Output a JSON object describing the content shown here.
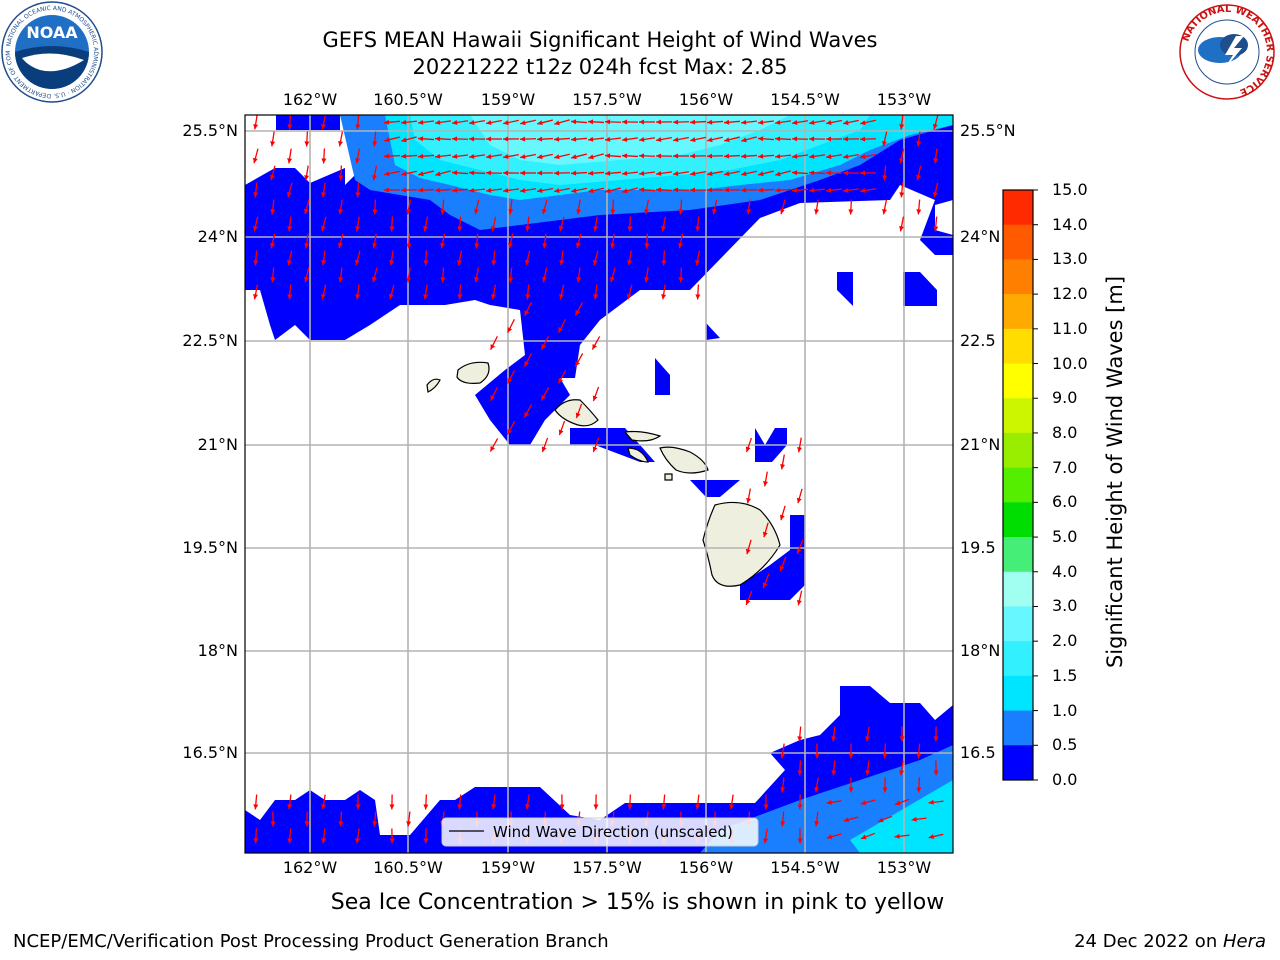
{
  "header": {
    "title_line1": "GEFS MEAN Hawaii Significant Height of Wind Waves",
    "title_line2": "20221222 t12z 024h fcst   Max: 2.85"
  },
  "logos": {
    "noaa": {
      "text": "NOAA",
      "ring_text": "NATIONAL OCEANIC AND ATMOSPHERIC ADMINISTRATION · U.S. DEPARTMENT OF COMMERCE"
    },
    "nws": {
      "ring_text": "NATIONAL WEATHER SERVICE"
    }
  },
  "map": {
    "lon_labels": [
      "162°W",
      "160.5°W",
      "159°W",
      "157.5°W",
      "156°W",
      "154.5°W",
      "153°W"
    ],
    "lat_labels": [
      "25.5°N",
      "24°N",
      "22.5°N",
      "21°N",
      "19.5°N",
      "18°N",
      "16.5°N"
    ],
    "lat_labels_right": [
      "25.5°N",
      "24°N",
      "22.5",
      "21°N",
      "19.5",
      "18°N",
      "16.5"
    ],
    "legend": "Wind Wave Direction (unscaled)",
    "arrow_color": "#ff0000",
    "land_color": "#efefdf"
  },
  "colorbar": {
    "label": "Significant Height of Wind Waves [m]",
    "ticks": [
      "0.0",
      "0.5",
      "1.0",
      "1.5",
      "2.0",
      "3.0",
      "4.0",
      "5.0",
      "6.0",
      "7.0",
      "8.0",
      "9.0",
      "10.0",
      "11.0",
      "12.0",
      "13.0",
      "14.0",
      "15.0"
    ],
    "colors": [
      "#0000ff",
      "#1a7fff",
      "#00e5ff",
      "#33f0ff",
      "#66f7ff",
      "#a0fff0",
      "#44ee77",
      "#00dd00",
      "#55ee00",
      "#99ee00",
      "#ccf500",
      "#ffff00",
      "#ffdd00",
      "#ffaa00",
      "#ff8000",
      "#ff5a00",
      "#ff2a00"
    ]
  },
  "notes": {
    "sea_ice": "Sea Ice Concentration > 15% is shown in pink to yellow"
  },
  "footer": {
    "left": "NCEP/EMC/Verification Post Processing Product Generation Branch",
    "right_prefix": "24 Dec 2022 on ",
    "right_host": "Hera"
  }
}
